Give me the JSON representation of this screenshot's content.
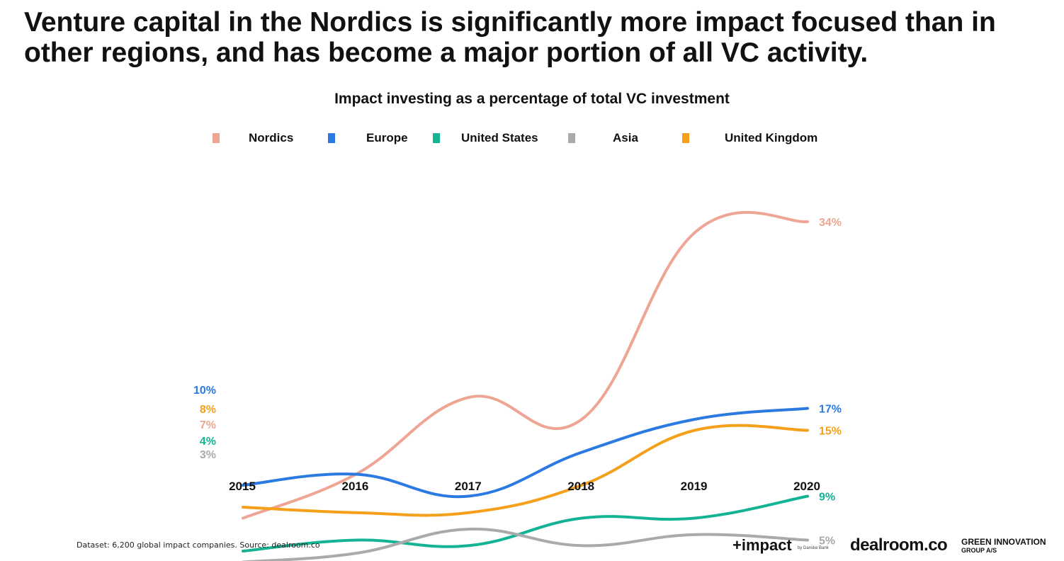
{
  "headline": "Venture capital in the Nordics is significantly more impact focused than in other regions, and has become a major portion of all VC activity.",
  "footer": {
    "source": "Dataset: 6,200 global impact companies. Source: dealroom.co",
    "logos": {
      "impact": "+impact",
      "impact_sub": "by Danske Bank",
      "dealroom": "dealroom.co",
      "gig_line1": "GREEN INNOVATION",
      "gig_line2": "GROUP A/S"
    }
  },
  "chart_data": {
    "type": "line",
    "title": "Impact investing as a percentage of total VC investment",
    "xlabel": "",
    "ylabel": "",
    "x": [
      "2015",
      "2016",
      "2017",
      "2018",
      "2019",
      "2020"
    ],
    "ylim": [
      0,
      40
    ],
    "grid": false,
    "legend_position": "top",
    "series": [
      {
        "name": "Nordics",
        "color": "#eea593",
        "values": [
          7,
          11,
          18,
          16,
          33,
          34
        ],
        "start_label": "7%",
        "end_label": "34%"
      },
      {
        "name": "Europe",
        "color": "#2a7ae2",
        "values": [
          10,
          11,
          9,
          13,
          16,
          17
        ],
        "start_label": "10%",
        "end_label": "17%"
      },
      {
        "name": "United States",
        "color": "#14b394",
        "values": [
          4,
          5,
          4.5,
          7,
          7,
          9
        ],
        "start_label": "4%",
        "end_label": "9%"
      },
      {
        "name": "Asia",
        "color": "#aaaaaa",
        "values": [
          3,
          3.8,
          6,
          4.5,
          5.5,
          5
        ],
        "start_label": "3%",
        "end_label": "5%"
      },
      {
        "name": "United Kingdom",
        "color": "#f5a01a",
        "values": [
          8,
          7.5,
          7.5,
          10,
          15,
          15
        ],
        "start_label": "8%",
        "end_label": "15%"
      }
    ]
  }
}
